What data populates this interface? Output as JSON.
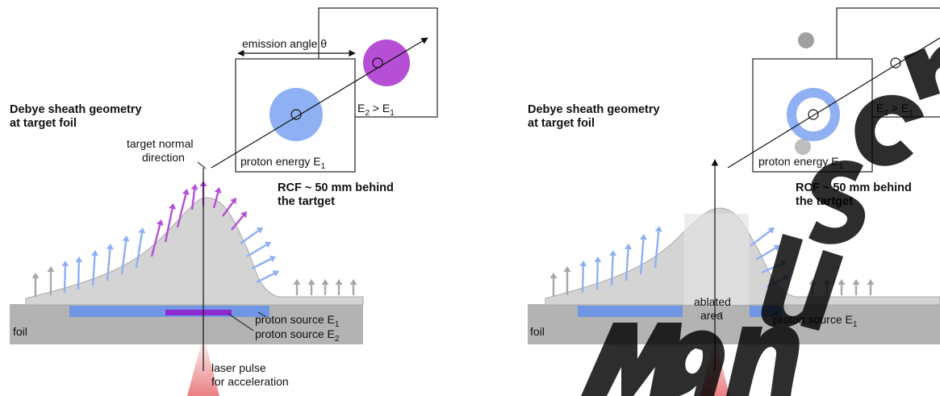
{
  "left": {
    "heading_line1": "Debye sheath geometry",
    "heading_line2": "at target foil",
    "target_normal_line1": "target normal",
    "target_normal_line2": "direction",
    "emission_angle": "emission angle θ",
    "rcf_line1": "RCF ~ 50 mm behind",
    "rcf_line2": "the tartget",
    "proton_energy_label": "proton energy E",
    "proton_energy_sub": "1",
    "energy_cmp_e": "E",
    "energy_cmp_sub1": "2",
    "energy_cmp_mid": " > E",
    "energy_cmp_sub2": "1",
    "foil": "foil",
    "source1": "proton source E",
    "source1_sub": "1",
    "source2": "proton source E",
    "source2_sub": "2",
    "laser_line1": "laser pulse",
    "laser_line2": "for acceleration"
  },
  "right": {
    "heading_line1": "Debye sheath geometry",
    "heading_line2": "at target foil",
    "rcf_line1": "RCF ~ 50 mm behind",
    "rcf_line2": "the tartget",
    "proton_energy_label": "proton energy E",
    "proton_energy_sub": "1",
    "energy_cmp_e": "E",
    "energy_cmp_sub1": "2",
    "energy_cmp_mid": " > E",
    "energy_cmp_sub2": "1",
    "foil": "foil",
    "ablated_line1": "ablated",
    "ablated_line2": "area",
    "source1": "proton source E",
    "source1_sub": "1"
  },
  "colors": {
    "foil": "#b3b3b3",
    "sheath": "#d4d4d4",
    "proton_e1": "#8fb0f2",
    "proton_e2": "#b64fd6",
    "source_e1": "#6f97e3",
    "source_e2": "#8e2bd0",
    "laser": "#e8787c",
    "gray_arrow": "#a8a8a8",
    "watermark": "#000000"
  }
}
